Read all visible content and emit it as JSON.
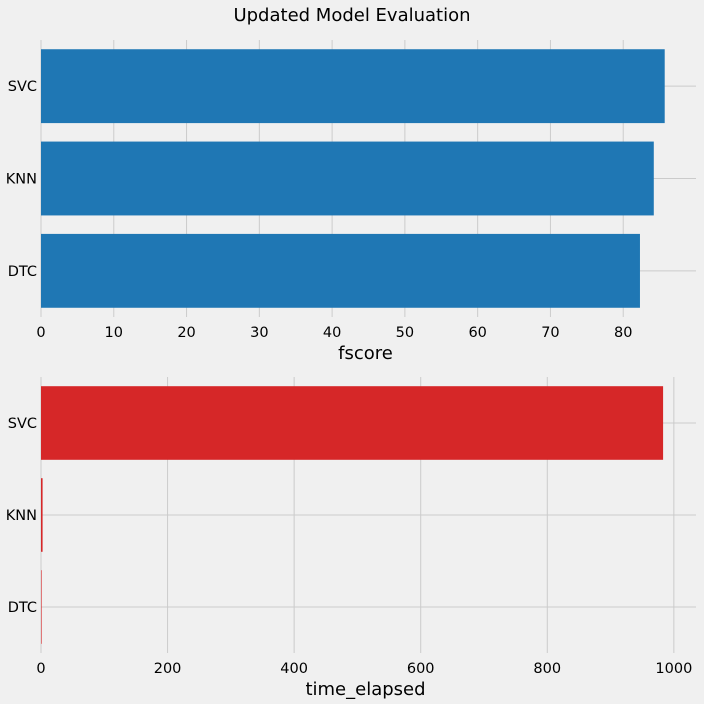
{
  "figure": {
    "title": "Updated Model Evaluation",
    "background": "#f0f0f0",
    "grid_color": "#cbcbcb"
  },
  "chart_data": [
    {
      "type": "bar",
      "orientation": "horizontal",
      "categories": [
        "DTC",
        "KNN",
        "SVC"
      ],
      "values": [
        82.3,
        84.2,
        85.7
      ],
      "bar_color": "#1f77b4",
      "xlabel": "fscore",
      "ylabel": "",
      "xlim": [
        0,
        90
      ],
      "xticks": [
        0,
        10,
        20,
        30,
        40,
        50,
        60,
        70,
        80
      ],
      "grid": true
    },
    {
      "type": "bar",
      "orientation": "horizontal",
      "categories": [
        "DTC",
        "KNN",
        "SVC"
      ],
      "values": [
        0.3,
        2.5,
        983
      ],
      "bar_color": "#d62728",
      "xlabel": "time_elapsed",
      "ylabel": "",
      "xlim": [
        0,
        1035
      ],
      "xticks": [
        0,
        200,
        400,
        600,
        800,
        1000
      ],
      "grid": true
    }
  ]
}
